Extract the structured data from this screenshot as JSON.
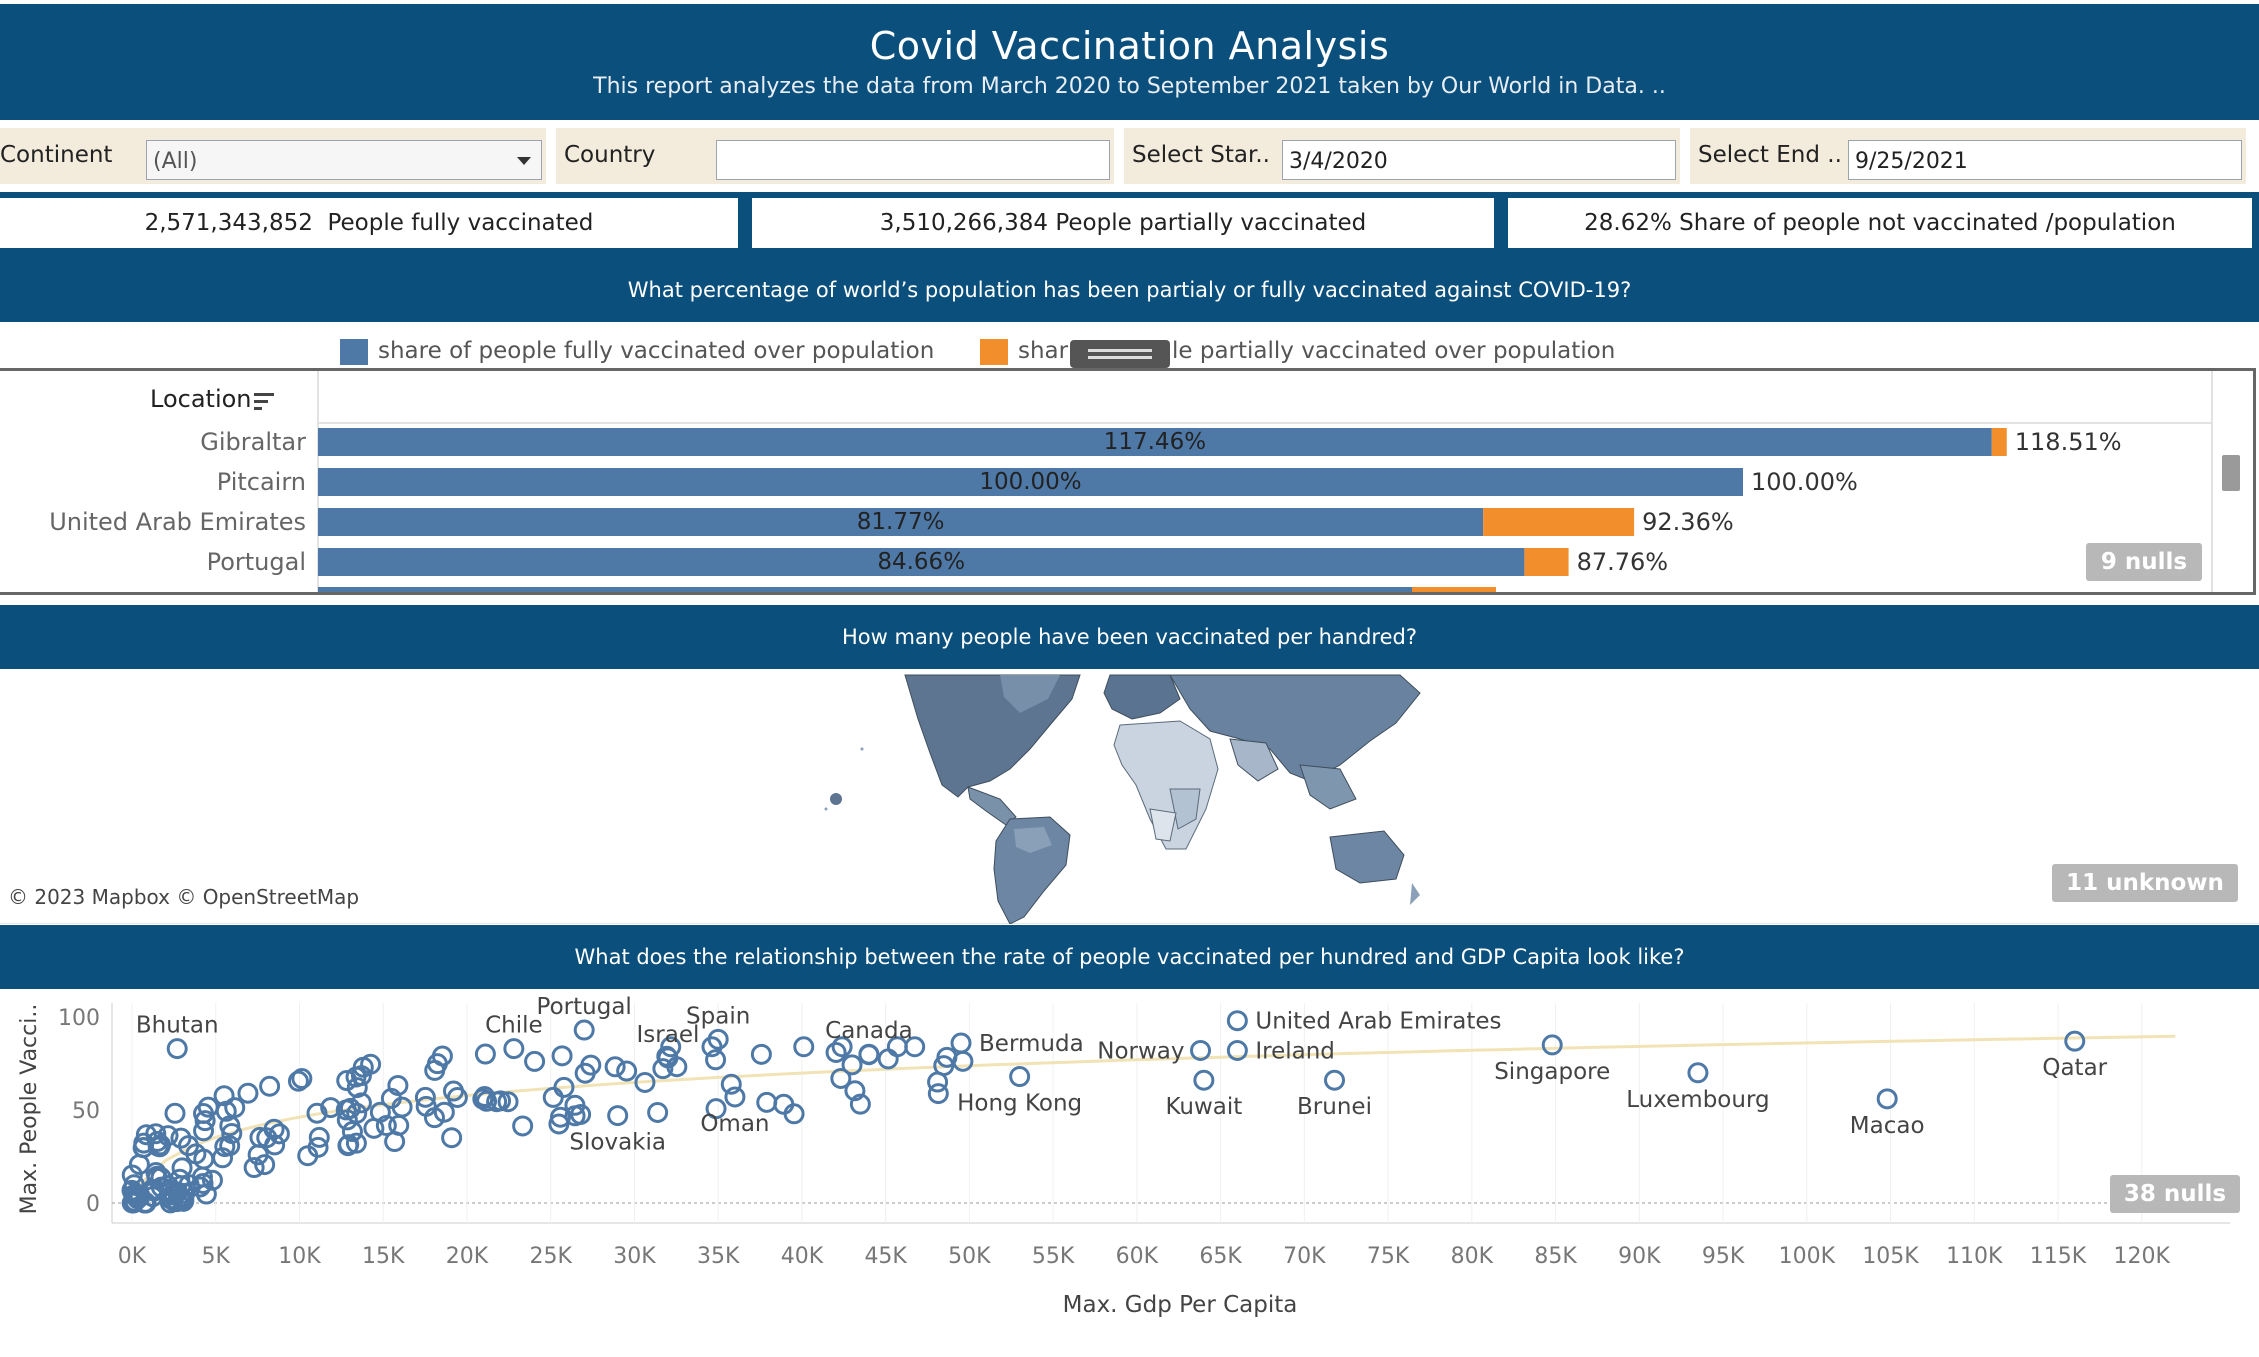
{
  "header": {
    "title": "Covid Vaccination Analysis",
    "subtitle": "This report analyzes the data from March 2020 to September 2021 taken by Our World in Data. .."
  },
  "filters": {
    "continent_label": "Continent",
    "continent_value": "(All)",
    "country_label": "Country",
    "country_value": "",
    "start_label": "Select Star..",
    "start_value": "3/4/2020",
    "end_label": "Select End ..",
    "end_value": "9/25/2021"
  },
  "kpis": {
    "fully_value": "2,571,343,852",
    "fully_label": "People fully vaccinated",
    "partial_value": "3,510,266,384",
    "partial_label": "People partially vaccinated",
    "notvacc_value": "28.62%",
    "notvacc_label": "Share of people not vaccinated /population"
  },
  "questions": {
    "q1": "What percentage of world’s population has been partialy or fully vaccinated against COVID-19?",
    "q2": "How many people have been vaccinated per handred?",
    "q3": "What does the relationship between the rate of people vaccinated per hundred and GDP Capita look like?"
  },
  "colors": {
    "band": "#0b4f7c",
    "fully": "#4e79a7",
    "partial": "#f28e2b",
    "trend": "#f1e3b5"
  },
  "bar_chart": {
    "location_header": "Location",
    "legend_fully": "share of people fully vaccinated over population",
    "legend_partial_prefix": "shar",
    "legend_partial_suffix": "le partially vaccinated over population",
    "nulls": "9 nulls",
    "rows": [
      {
        "location": "Gibraltar",
        "fully": 117.46,
        "total": 118.51,
        "fully_label": "117.46%",
        "total_label": "118.51%"
      },
      {
        "location": "Pitcairn",
        "fully": 100.0,
        "total": 100.0,
        "fully_label": "100.00%",
        "total_label": "100.00%"
      },
      {
        "location": "United Arab Emirates",
        "fully": 81.77,
        "total": 92.36,
        "fully_label": "81.77%",
        "total_label": "92.36%"
      },
      {
        "location": "Portugal",
        "fully": 84.66,
        "total": 87.76,
        "fully_label": "84.66%",
        "total_label": "87.76%"
      }
    ]
  },
  "map": {
    "credit": "© 2023 Mapbox © OpenStreetMap",
    "unknown": "11 unknown"
  },
  "chart_data": {
    "type": "scatter",
    "xlabel": "Max. Gdp Per Capita",
    "ylabel": "Max. People Vacci..",
    "xlim": [
      0,
      123000
    ],
    "ylim": [
      0,
      100
    ],
    "x_ticks": [
      "0K",
      "5K",
      "10K",
      "15K",
      "20K",
      "25K",
      "30K",
      "35K",
      "40K",
      "45K",
      "50K",
      "55K",
      "60K",
      "65K",
      "70K",
      "75K",
      "80K",
      "85K",
      "90K",
      "95K",
      "100K",
      "105K",
      "110K",
      "115K",
      "120K"
    ],
    "y_ticks": [
      "0",
      "50",
      "100"
    ],
    "nulls": "38 nulls",
    "labeled_points": [
      {
        "name": "Bhutan",
        "x": 2700,
        "y": 83
      },
      {
        "name": "Chile",
        "x": 22800,
        "y": 83
      },
      {
        "name": "Portugal",
        "x": 27000,
        "y": 93
      },
      {
        "name": "Israel",
        "x": 32000,
        "y": 78
      },
      {
        "name": "Spain",
        "x": 35000,
        "y": 88
      },
      {
        "name": "Canada",
        "x": 44000,
        "y": 80
      },
      {
        "name": "Bermuda",
        "x": 49500,
        "y": 86
      },
      {
        "name": "Norway",
        "x": 63800,
        "y": 82
      },
      {
        "name": "United Arab Emirates",
        "x": 66000,
        "y": 98
      },
      {
        "name": "Ireland",
        "x": 66000,
        "y": 82
      },
      {
        "name": "Singapore",
        "x": 84800,
        "y": 85
      },
      {
        "name": "Qatar",
        "x": 116000,
        "y": 87
      },
      {
        "name": "Hong Kong",
        "x": 53000,
        "y": 68
      },
      {
        "name": "Kuwait",
        "x": 64000,
        "y": 66
      },
      {
        "name": "Brunei",
        "x": 71800,
        "y": 66
      },
      {
        "name": "Luxembourg",
        "x": 93500,
        "y": 70
      },
      {
        "name": "Macao",
        "x": 104800,
        "y": 56
      },
      {
        "name": "Slovakia",
        "x": 29000,
        "y": 47
      },
      {
        "name": "Oman",
        "x": 36000,
        "y": 57
      }
    ]
  }
}
